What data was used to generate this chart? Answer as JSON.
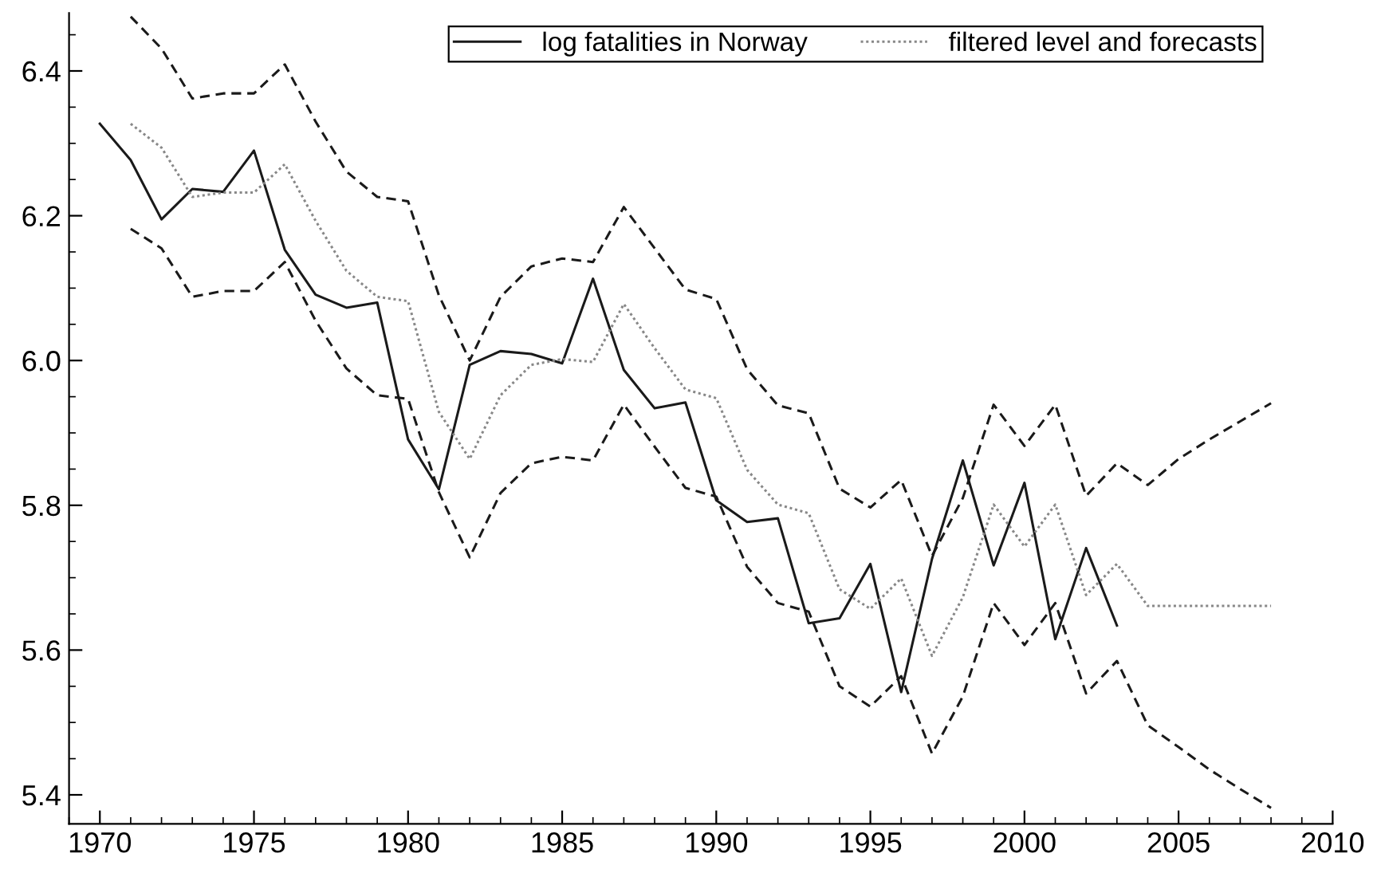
{
  "chart_data": {
    "type": "line",
    "xlim": [
      1969,
      2010
    ],
    "xticks": [
      1970,
      1975,
      1980,
      1985,
      1990,
      1995,
      2000,
      2005,
      2010
    ],
    "ylim": [
      5.36,
      6.48
    ],
    "yticks": [
      5.4,
      5.6,
      5.8,
      {
        "value": 6,
        "label": "6.0"
      },
      6.2,
      6.4
    ],
    "grid": false,
    "legend": "top right",
    "marker": "none",
    "series": [
      {
        "name": "log fatalities in Norway",
        "color": "#1a1a1a",
        "line_style": "solid",
        "x": [
          1970,
          1971,
          1972,
          1973,
          1974,
          1975,
          1976,
          1977,
          1978,
          1979,
          1980,
          1981,
          1982,
          1983,
          1984,
          1985,
          1986,
          1987,
          1988,
          1989,
          1990,
          1991,
          1992,
          1993,
          1994,
          1995,
          1996,
          1997,
          1998,
          1999,
          2000,
          2001,
          2002,
          2003
        ],
        "values": [
          6.327,
          6.277,
          6.195,
          6.237,
          6.233,
          6.29,
          6.153,
          6.091,
          6.073,
          6.08,
          5.891,
          5.822,
          5.994,
          6.013,
          6.009,
          5.996,
          6.113,
          5.987,
          5.934,
          5.942,
          5.807,
          5.777,
          5.782,
          5.637,
          5.644,
          5.719,
          5.542,
          5.726,
          5.862,
          5.717,
          5.831,
          5.615,
          5.741,
          5.634
        ]
      },
      {
        "name": "filtered level and forecasts",
        "color": "#888888",
        "line_style": "dotted",
        "x": [
          1971,
          1972,
          1973,
          1974,
          1975,
          1976,
          1977,
          1978,
          1979,
          1980,
          1981,
          1982,
          1983,
          1984,
          1985,
          1986,
          1987,
          1988,
          1989,
          1990,
          1991,
          1992,
          1993,
          1994,
          1995,
          1996,
          1997,
          1998,
          1999,
          2000,
          2001,
          2002,
          2003,
          2004,
          2005,
          2006,
          2007,
          2008
        ],
        "values": [
          6.327,
          6.294,
          6.226,
          6.232,
          6.232,
          6.271,
          6.193,
          6.124,
          6.088,
          6.082,
          5.929,
          5.864,
          5.952,
          5.994,
          6.002,
          5.998,
          6.078,
          6.017,
          5.96,
          5.948,
          5.849,
          5.801,
          5.789,
          5.684,
          5.657,
          5.699,
          5.592,
          5.673,
          5.801,
          5.743,
          5.801,
          5.676,
          5.719,
          5.661,
          5.661,
          5.661,
          5.661,
          5.661
        ]
      },
      {
        "color": "#1a1a1a",
        "line_style": "dashed",
        "x": [
          1971,
          1972,
          1973,
          1974,
          1975,
          1976,
          1977,
          1978,
          1979,
          1980,
          1981,
          1982,
          1983,
          1984,
          1985,
          1986,
          1987,
          1988,
          1989,
          1990,
          1991,
          1992,
          1993,
          1994,
          1995,
          1996,
          1997,
          1998,
          1999,
          2000,
          2001,
          2002,
          2003,
          2004,
          2005,
          2006,
          2007,
          2008
        ],
        "values": [
          6.475,
          6.431,
          6.362,
          6.369,
          6.369,
          6.409,
          6.33,
          6.261,
          6.226,
          6.22,
          6.09,
          6.0,
          6.088,
          6.13,
          6.141,
          6.136,
          6.212,
          6.155,
          6.098,
          6.085,
          5.988,
          5.938,
          5.927,
          5.823,
          5.797,
          5.835,
          5.73,
          5.81,
          5.939,
          5.882,
          5.939,
          5.813,
          5.858,
          5.828,
          5.864,
          5.891,
          5.916,
          5.941
        ]
      },
      {
        "color": "#1a1a1a",
        "line_style": "dashed",
        "x": [
          1971,
          1972,
          1973,
          1974,
          1975,
          1976,
          1977,
          1978,
          1979,
          1980,
          1981,
          1982,
          1983,
          1984,
          1985,
          1986,
          1987,
          1988,
          1989,
          1990,
          1991,
          1992,
          1993,
          1994,
          1995,
          1996,
          1997,
          1998,
          1999,
          2000,
          2001,
          2002,
          2003,
          2004,
          2005,
          2006,
          2007,
          2008
        ],
        "values": [
          6.182,
          6.155,
          6.088,
          6.096,
          6.096,
          6.136,
          6.055,
          5.989,
          5.952,
          5.947,
          5.818,
          5.728,
          5.817,
          5.858,
          5.867,
          5.862,
          5.939,
          5.881,
          5.824,
          5.812,
          5.715,
          5.665,
          5.653,
          5.55,
          5.522,
          5.564,
          5.457,
          5.536,
          5.665,
          5.607,
          5.665,
          5.54,
          5.585,
          5.496,
          5.466,
          5.435,
          5.408,
          5.382
        ]
      }
    ]
  }
}
